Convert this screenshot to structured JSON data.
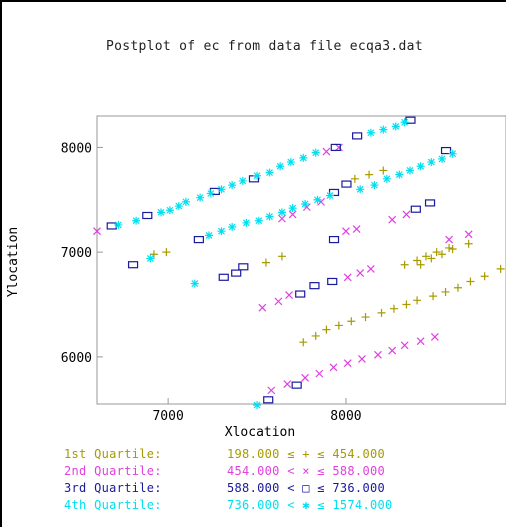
{
  "chart_data": {
    "type": "scatter",
    "title": "Postplot of ec from data file ecqa3.dat",
    "xlabel": "Xlocation",
    "ylabel": "Ylocation",
    "xlim": [
      6600,
      8900
    ],
    "ylim": [
      5550,
      8300
    ],
    "xticks": [
      7000,
      8000
    ],
    "yticks": [
      6000,
      7000,
      8000
    ],
    "grid": false,
    "legend_position": "bottom",
    "series": [
      {
        "name": "1st Quartile",
        "marker": "plus",
        "color": "#a89a00",
        "range_text": "198.000 ≤ + ≤ 454.000",
        "points": [
          [
            6920,
            6980
          ],
          [
            6990,
            7000
          ],
          [
            7550,
            6900
          ],
          [
            7640,
            6960
          ],
          [
            7760,
            6140
          ],
          [
            7830,
            6200
          ],
          [
            7890,
            6260
          ],
          [
            7960,
            6300
          ],
          [
            8030,
            6340
          ],
          [
            8110,
            6380
          ],
          [
            8200,
            6420
          ],
          [
            8270,
            6460
          ],
          [
            8340,
            6500
          ],
          [
            8400,
            6540
          ],
          [
            8490,
            6580
          ],
          [
            8560,
            6620
          ],
          [
            8630,
            6660
          ],
          [
            8700,
            6720
          ],
          [
            8780,
            6770
          ],
          [
            8870,
            6840
          ],
          [
            8330,
            6880
          ],
          [
            8400,
            6920
          ],
          [
            8450,
            6960
          ],
          [
            8510,
            7000
          ],
          [
            8580,
            7040
          ],
          [
            8420,
            6880
          ],
          [
            8480,
            6940
          ],
          [
            8540,
            6980
          ],
          [
            8600,
            7030
          ],
          [
            8690,
            7080
          ],
          [
            8050,
            7700
          ],
          [
            8130,
            7740
          ],
          [
            8210,
            7780
          ]
        ]
      },
      {
        "name": "2nd Quartile",
        "marker": "cross",
        "color": "#e040e0",
        "range_text": "454.000 < × ≤ 588.000",
        "points": [
          [
            6600,
            7200
          ],
          [
            7530,
            6470
          ],
          [
            7620,
            6530
          ],
          [
            7680,
            6590
          ],
          [
            7580,
            5680
          ],
          [
            7670,
            5740
          ],
          [
            7770,
            5800
          ],
          [
            7850,
            5840
          ],
          [
            7930,
            5900
          ],
          [
            8010,
            5940
          ],
          [
            8090,
            5980
          ],
          [
            8180,
            6020
          ],
          [
            8260,
            6060
          ],
          [
            8330,
            6110
          ],
          [
            8420,
            6150
          ],
          [
            8500,
            6190
          ],
          [
            8010,
            6760
          ],
          [
            8080,
            6800
          ],
          [
            8140,
            6840
          ],
          [
            7780,
            7430
          ],
          [
            7860,
            7480
          ],
          [
            7640,
            7320
          ],
          [
            7700,
            7360
          ],
          [
            8000,
            7200
          ],
          [
            8060,
            7220
          ],
          [
            8260,
            7310
          ],
          [
            8340,
            7360
          ],
          [
            8580,
            7120
          ],
          [
            8690,
            7170
          ],
          [
            7890,
            7960
          ],
          [
            7960,
            8000
          ]
        ]
      },
      {
        "name": "3rd Quartile",
        "marker": "square",
        "color": "#1a1a9c",
        "range_text": "588.000 < □ ≤ 736.000",
        "points": [
          [
            6680,
            7250
          ],
          [
            6800,
            6880
          ],
          [
            6880,
            7350
          ],
          [
            7170,
            7120
          ],
          [
            7260,
            7580
          ],
          [
            7310,
            6760
          ],
          [
            7380,
            6800
          ],
          [
            7420,
            6860
          ],
          [
            7480,
            7700
          ],
          [
            7740,
            6600
          ],
          [
            7820,
            6680
          ],
          [
            7920,
            6720
          ],
          [
            7930,
            7120
          ],
          [
            7930,
            7570
          ],
          [
            8000,
            7650
          ],
          [
            7940,
            8000
          ],
          [
            8060,
            8110
          ],
          [
            8390,
            7410
          ],
          [
            8470,
            7470
          ],
          [
            8560,
            7970
          ],
          [
            8360,
            8260
          ],
          [
            7560,
            5590
          ],
          [
            7720,
            5730
          ]
        ]
      },
      {
        "name": "4th Quartile",
        "marker": "asterisk",
        "color": "#00e0f0",
        "range_text": "736.000 < ✱ ≤ 1574.000",
        "points": [
          [
            6900,
            6940
          ],
          [
            6960,
            7380
          ],
          [
            7010,
            7400
          ],
          [
            7060,
            7440
          ],
          [
            7100,
            7480
          ],
          [
            7150,
            6700
          ],
          [
            7180,
            7520
          ],
          [
            7240,
            7560
          ],
          [
            7300,
            7600
          ],
          [
            7360,
            7640
          ],
          [
            7420,
            7680
          ],
          [
            7500,
            7730
          ],
          [
            7570,
            7760
          ],
          [
            7630,
            7820
          ],
          [
            7690,
            7860
          ],
          [
            7760,
            7900
          ],
          [
            7830,
            7950
          ],
          [
            7230,
            7160
          ],
          [
            7300,
            7200
          ],
          [
            7360,
            7240
          ],
          [
            7440,
            7280
          ],
          [
            7510,
            7300
          ],
          [
            7570,
            7340
          ],
          [
            7640,
            7380
          ],
          [
            7700,
            7420
          ],
          [
            7770,
            7460
          ],
          [
            7840,
            7500
          ],
          [
            7910,
            7540
          ],
          [
            8080,
            7600
          ],
          [
            8160,
            7640
          ],
          [
            8230,
            7700
          ],
          [
            8300,
            7740
          ],
          [
            8360,
            7780
          ],
          [
            8420,
            7820
          ],
          [
            8480,
            7860
          ],
          [
            8540,
            7890
          ],
          [
            8600,
            7940
          ],
          [
            8140,
            8140
          ],
          [
            8210,
            8170
          ],
          [
            8280,
            8200
          ],
          [
            8330,
            8240
          ],
          [
            6820,
            7300
          ],
          [
            6720,
            7260
          ],
          [
            7500,
            5540
          ]
        ]
      }
    ]
  }
}
